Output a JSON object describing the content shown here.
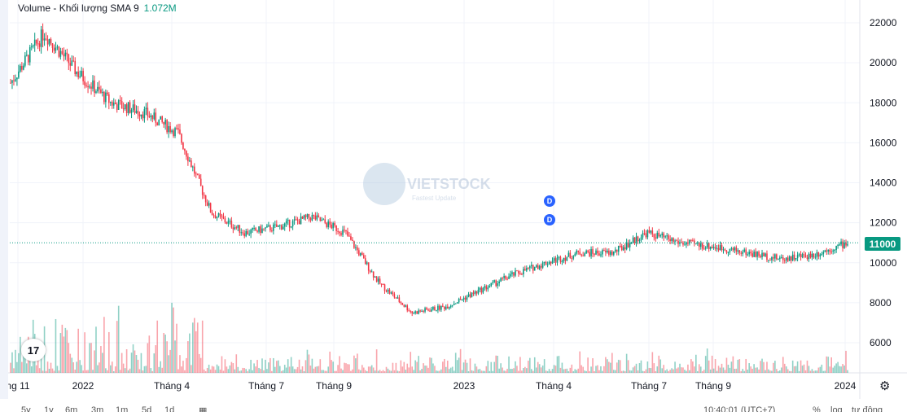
{
  "legend": {
    "label": "Volume - Khối lượng SMA 9",
    "value": "1.072M"
  },
  "last_price": "11000",
  "logo": {
    "text": "17"
  },
  "watermark": {
    "text": "VIETSTOCK",
    "sub": "Fastest Update"
  },
  "dividend_marker": "D",
  "colors": {
    "up": "#089981",
    "down": "#f23645",
    "price_line": "#089981",
    "grid": "#f0f3fa"
  },
  "icons": {
    "settings": "gear-icon",
    "tv_logo": "tradingview-logo"
  },
  "chart_data": {
    "type": "candlestick",
    "y_axis": {
      "ticks": [
        6000,
        8000,
        10000,
        12000,
        14000,
        16000,
        18000,
        20000,
        22000
      ],
      "range": [
        5000,
        23000
      ],
      "position": "right"
    },
    "x_axis": {
      "tick_labels": [
        "ng 11",
        "2022",
        "Tháng 4",
        "Tháng 7",
        "Tháng 9",
        "2023",
        "Tháng 4",
        "Tháng 7",
        "Tháng 9",
        "2024"
      ]
    },
    "series": [
      {
        "name": "price",
        "x": [
          "2021-11",
          "2021-12",
          "2022-01",
          "2022-02",
          "2022-03",
          "2022-04",
          "2022-05",
          "2022-06",
          "2022-07",
          "2022-08",
          "2022-09",
          "2022-10",
          "2022-11",
          "2022-12",
          "2023-01",
          "2023-02",
          "2023-03",
          "2023-04",
          "2023-05",
          "2023-06",
          "2023-07",
          "2023-08",
          "2023-09",
          "2023-10",
          "2023-11",
          "2023-12"
        ],
        "values": [
          19000,
          21500,
          19500,
          18000,
          17500,
          16500,
          12500,
          11500,
          11800,
          12300,
          11500,
          9000,
          7500,
          7800,
          8600,
          9400,
          10000,
          10500,
          10500,
          11500,
          11000,
          10800,
          10500,
          10200,
          10400,
          11000
        ]
      }
    ],
    "volume_visible": true,
    "last_value": 11000,
    "legend_position": "top-left",
    "grid": true
  },
  "bottom_bar": {
    "timeframes": [
      "5y",
      "1y",
      "6m",
      "3m",
      "1m",
      "5d",
      "1d"
    ],
    "clock": "10:40:01 (UTC+7)",
    "percent": "%",
    "log": "log",
    "auto": "tự động"
  }
}
